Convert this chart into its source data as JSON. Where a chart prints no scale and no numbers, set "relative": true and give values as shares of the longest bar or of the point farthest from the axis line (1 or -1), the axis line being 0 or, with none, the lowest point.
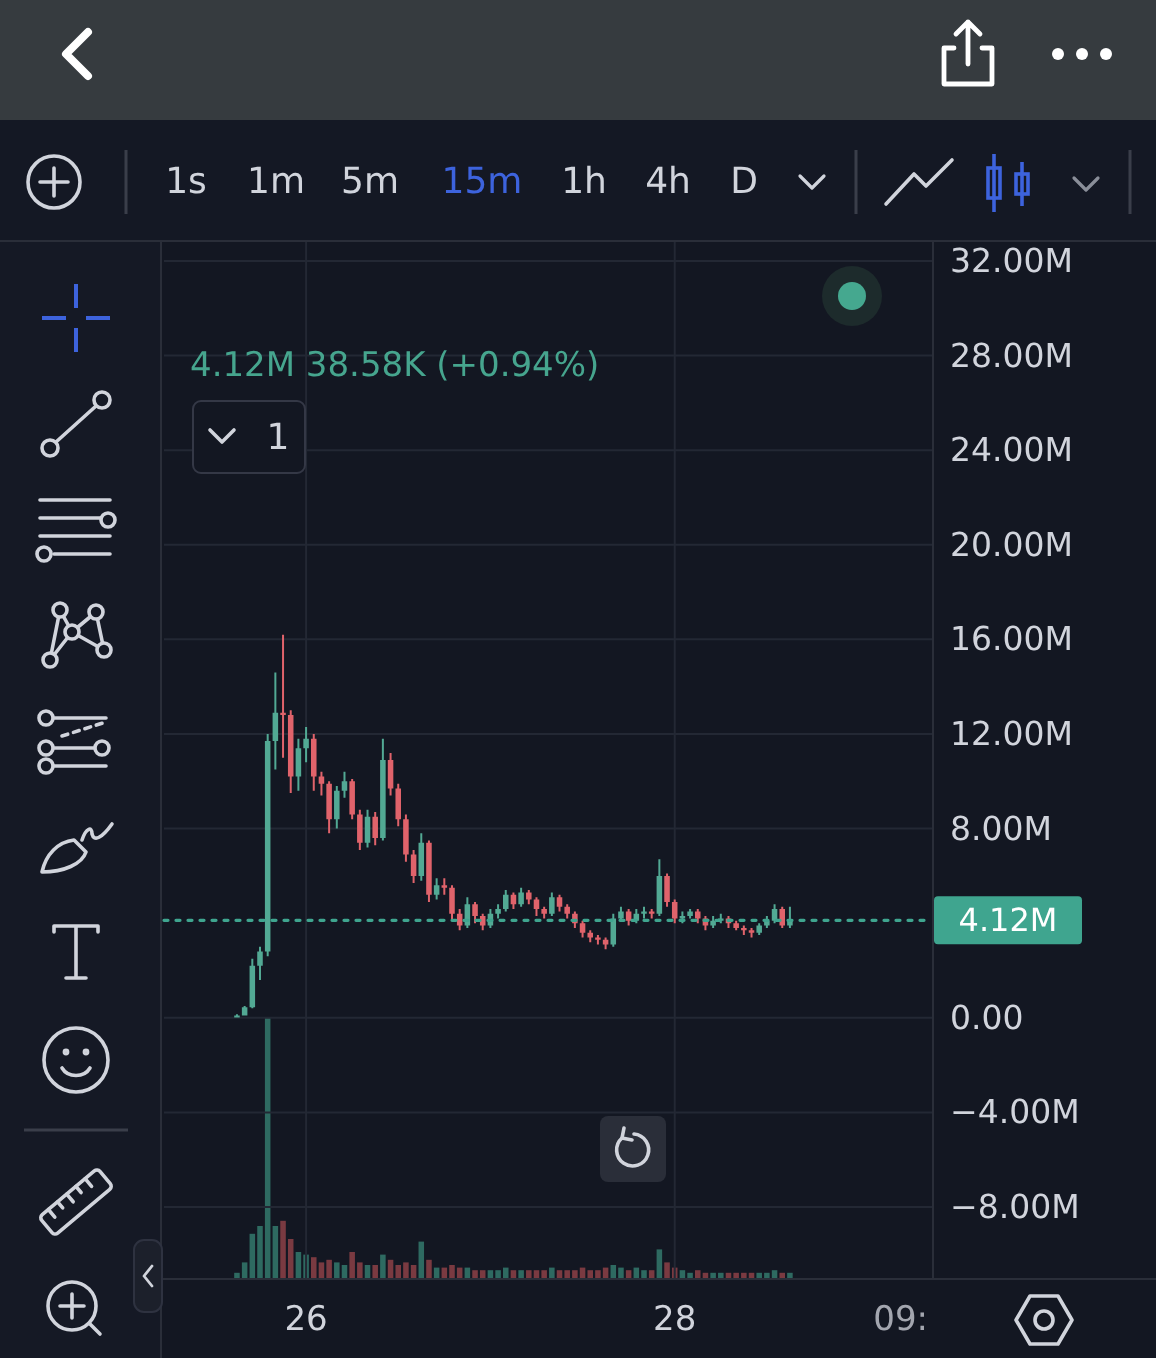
{
  "chart_data": [
    {
      "type": "candlestick",
      "subtitle": "4.12M 38.58K (+0.94%)",
      "annotations": [
        "1s",
        "1m",
        "5m",
        "15m",
        "1h",
        "4h",
        "D",
        "1",
        "09:"
      ],
      "categories": [
        null,
        null,
        null,
        null,
        null,
        null,
        null,
        null,
        null,
        null,
        null,
        null,
        null,
        null,
        null,
        null,
        null,
        null,
        "26",
        null,
        null,
        null,
        null,
        null,
        null,
        null,
        null,
        null,
        null,
        null,
        null,
        null,
        null,
        null,
        null,
        null,
        null,
        null,
        null,
        null,
        null,
        null,
        null,
        null,
        null,
        null,
        null,
        null,
        null,
        null,
        null,
        null,
        null,
        null,
        null,
        null,
        null,
        null,
        null,
        null,
        null,
        null,
        null,
        null,
        null,
        null,
        "28",
        null,
        null,
        null,
        null,
        null,
        null,
        null,
        null,
        null,
        null,
        null,
        null,
        null,
        null,
        null,
        null,
        null,
        null,
        null,
        null,
        null,
        null,
        null,
        null,
        null,
        null,
        null,
        null,
        null,
        null,
        null,
        null,
        null
      ],
      "ohlc": [
        null,
        null,
        null,
        null,
        null,
        null,
        null,
        null,
        null,
        [
          0.05,
          0.15,
          0.05,
          0.1
        ],
        [
          0.1,
          0.5,
          0.1,
          0.45
        ],
        [
          0.45,
          2.5,
          0.4,
          2.2
        ],
        [
          2.2,
          3.0,
          1.6,
          2.8
        ],
        [
          2.8,
          12.0,
          2.6,
          11.7
        ],
        [
          11.7,
          14.6,
          10.5,
          12.9
        ],
        [
          12.9,
          16.2,
          11.0,
          12.8
        ],
        [
          12.8,
          13.0,
          9.5,
          10.2
        ],
        [
          10.2,
          11.8,
          9.6,
          11.4
        ],
        [
          11.4,
          12.3,
          10.8,
          11.8
        ],
        [
          11.8,
          12.0,
          9.6,
          10.2
        ],
        [
          10.2,
          10.4,
          9.4,
          9.9
        ],
        [
          9.9,
          10.0,
          7.8,
          8.4
        ],
        [
          8.4,
          9.8,
          8.0,
          9.6
        ],
        [
          9.6,
          10.4,
          9.3,
          10.0
        ],
        [
          10.0,
          10.1,
          8.4,
          8.6
        ],
        [
          8.6,
          8.8,
          7.1,
          7.4
        ],
        [
          7.4,
          8.8,
          7.2,
          8.5
        ],
        [
          8.5,
          8.7,
          7.3,
          7.6
        ],
        [
          7.6,
          11.8,
          7.5,
          10.9
        ],
        [
          10.9,
          11.2,
          9.4,
          9.7
        ],
        [
          9.7,
          9.9,
          8.1,
          8.4
        ],
        [
          8.4,
          8.6,
          6.6,
          6.9
        ],
        [
          6.9,
          7.1,
          5.7,
          6.0
        ],
        [
          6.0,
          7.8,
          5.8,
          7.4
        ],
        [
          7.4,
          7.5,
          4.9,
          5.2
        ],
        [
          5.2,
          5.9,
          5.0,
          5.6
        ],
        [
          5.6,
          5.9,
          5.2,
          5.5
        ],
        [
          5.5,
          5.6,
          4.1,
          4.4
        ],
        [
          4.4,
          4.6,
          3.7,
          3.9
        ],
        [
          3.9,
          5.1,
          3.8,
          4.8
        ],
        [
          4.8,
          4.9,
          4.0,
          4.3
        ],
        [
          4.3,
          4.4,
          3.7,
          3.9
        ],
        [
          3.9,
          4.6,
          3.8,
          4.4
        ],
        [
          4.4,
          4.8,
          4.2,
          4.6
        ],
        [
          4.6,
          5.4,
          4.5,
          5.2
        ],
        [
          5.2,
          5.3,
          4.6,
          4.8
        ],
        [
          4.8,
          5.5,
          4.7,
          5.3
        ],
        [
          5.3,
          5.4,
          4.8,
          5.0
        ],
        [
          5.0,
          5.1,
          4.3,
          4.6
        ],
        [
          4.6,
          4.7,
          4.2,
          4.4
        ],
        [
          4.4,
          5.3,
          4.3,
          5.1
        ],
        [
          5.1,
          5.2,
          4.5,
          4.7
        ],
        [
          4.7,
          4.8,
          4.2,
          4.4
        ],
        [
          4.4,
          4.5,
          3.8,
          4.0
        ],
        [
          4.0,
          4.1,
          3.4,
          3.6
        ],
        [
          3.6,
          3.7,
          3.2,
          3.4
        ],
        [
          3.4,
          3.5,
          3.1,
          3.3
        ],
        [
          3.3,
          3.4,
          2.9,
          3.1
        ],
        [
          3.1,
          4.4,
          3.0,
          4.2
        ],
        [
          4.2,
          4.7,
          4.1,
          4.5
        ],
        [
          4.5,
          4.6,
          3.9,
          4.1
        ],
        [
          4.1,
          4.6,
          4.0,
          4.4
        ],
        [
          4.4,
          4.7,
          4.2,
          4.5
        ],
        [
          4.5,
          4.6,
          4.2,
          4.4
        ],
        [
          4.4,
          6.7,
          4.3,
          6.0
        ],
        [
          6.0,
          6.1,
          4.7,
          4.9
        ],
        [
          4.9,
          5.0,
          4.0,
          4.2
        ],
        [
          4.2,
          4.5,
          4.0,
          4.3
        ],
        [
          4.3,
          4.6,
          4.2,
          4.5
        ],
        [
          4.5,
          4.6,
          4.0,
          4.2
        ],
        [
          4.2,
          4.3,
          3.7,
          3.9
        ],
        [
          3.9,
          4.3,
          3.8,
          4.1
        ],
        [
          4.1,
          4.4,
          4.0,
          4.2
        ],
        [
          4.2,
          4.3,
          3.8,
          4.0
        ],
        [
          4.0,
          4.1,
          3.7,
          3.8
        ],
        [
          3.8,
          3.9,
          3.5,
          3.7
        ],
        [
          3.7,
          3.8,
          3.4,
          3.6
        ],
        [
          3.6,
          4.0,
          3.5,
          3.9
        ],
        [
          3.9,
          4.3,
          3.8,
          4.1
        ],
        [
          4.1,
          4.8,
          4.0,
          4.6
        ],
        [
          4.6,
          4.7,
          3.8,
          3.9
        ],
        [
          3.9,
          4.7,
          3.8,
          4.12
        ],
        null,
        null,
        null,
        null,
        null,
        null,
        null,
        null,
        null,
        null,
        null,
        null,
        null,
        null,
        null,
        null,
        null,
        null
      ],
      "colors": [
        null,
        null,
        null,
        null,
        null,
        null,
        null,
        null,
        null,
        "#52a994",
        "#52a994",
        "#52a994",
        "#52a994",
        "#52a994",
        "#52a994",
        "#e0636b",
        "#e0636b",
        "#52a994",
        "#52a994",
        "#e0636b",
        "#e0636b",
        "#e0636b",
        "#52a994",
        "#52a994",
        "#e0636b",
        "#e0636b",
        "#52a994",
        "#e0636b",
        "#52a994",
        "#e0636b",
        "#e0636b",
        "#e0636b",
        "#e0636b",
        "#52a994",
        "#e0636b",
        "#52a994",
        "#e0636b",
        "#e0636b",
        "#e0636b",
        "#52a994",
        "#e0636b",
        "#e0636b",
        "#52a994",
        "#52a994",
        "#52a994",
        "#e0636b",
        "#52a994",
        "#e0636b",
        "#e0636b",
        "#e0636b",
        "#52a994",
        "#e0636b",
        "#e0636b",
        "#e0636b",
        "#e0636b",
        "#e0636b",
        "#e0636b",
        "#e0636b",
        "#52a994",
        "#52a994",
        "#e0636b",
        "#52a994",
        "#52a994",
        "#e0636b",
        "#52a994",
        "#e0636b",
        "#e0636b",
        "#52a994",
        "#52a994",
        "#e0636b",
        "#e0636b",
        "#52a994",
        "#52a994",
        "#e0636b",
        "#e0636b",
        "#e0636b",
        "#e0636b",
        "#52a994",
        "#52a994",
        "#52a994",
        "#e0636b",
        "#52a994",
        null,
        null,
        null,
        null,
        null,
        null,
        null,
        null,
        null,
        null,
        null,
        null,
        null,
        null,
        null,
        null,
        null,
        null
      ],
      "ylim": [
        -11,
        32.8
      ],
      "yticks": [
        {
          "value": 32,
          "label": "32.00M"
        },
        {
          "value": 28,
          "label": "28.00M"
        },
        {
          "value": 24,
          "label": "24.00M"
        },
        {
          "value": 20,
          "label": "20.00M"
        },
        {
          "value": 16,
          "label": "16.00M"
        },
        {
          "value": 12,
          "label": "12.00M"
        },
        {
          "value": 8,
          "label": "8.00M"
        },
        {
          "value": 0,
          "label": "0.00"
        },
        {
          "value": -4,
          "label": "−4.00M"
        },
        {
          "value": -8,
          "label": "−8.00M"
        }
      ],
      "grid": true,
      "ref_lines": [
        {
          "axis": "y",
          "value": 4.12,
          "label": "4.12M",
          "color": "#3fa58f",
          "line_style": "dotted"
        }
      ]
    },
    {
      "type": "bar",
      "relative": true,
      "tick_labels": false,
      "categories": [
        null,
        null,
        null,
        null,
        null,
        null,
        null,
        null,
        null,
        null,
        null,
        null,
        null,
        null,
        null,
        null,
        null,
        null,
        "26",
        null,
        null,
        null,
        null,
        null,
        null,
        null,
        null,
        null,
        null,
        null,
        null,
        null,
        null,
        null,
        null,
        null,
        null,
        null,
        null,
        null,
        null,
        null,
        null,
        null,
        null,
        null,
        null,
        null,
        null,
        null,
        null,
        null,
        null,
        null,
        null,
        null,
        null,
        null,
        null,
        null,
        null,
        null,
        null,
        null,
        null,
        null,
        "28",
        null,
        null,
        null,
        null,
        null,
        null,
        null,
        null,
        null,
        null,
        null,
        null,
        null,
        null,
        null,
        null,
        null,
        null,
        null,
        null,
        null,
        null,
        null,
        null,
        null,
        null,
        null,
        null,
        null,
        null,
        null,
        null,
        null
      ],
      "values": [
        null,
        null,
        null,
        null,
        null,
        null,
        null,
        null,
        null,
        0.02,
        0.06,
        0.17,
        0.2,
        1,
        0.2,
        0.22,
        0.15,
        0.1,
        0.09,
        0.08,
        0.06,
        0.07,
        0.06,
        0.05,
        0.1,
        0.06,
        0.05,
        0.05,
        0.09,
        0.07,
        0.05,
        0.06,
        0.05,
        0.14,
        0.07,
        0.04,
        0.04,
        0.05,
        0.04,
        0.04,
        0.03,
        0.03,
        0.03,
        0.03,
        0.04,
        0.03,
        0.03,
        0.03,
        0.03,
        0.03,
        0.04,
        0.03,
        0.03,
        0.03,
        0.04,
        0.03,
        0.03,
        0.04,
        0.05,
        0.04,
        0.03,
        0.04,
        0.03,
        0.03,
        0.11,
        0.06,
        0.04,
        0.03,
        0.02,
        0.03,
        0.02,
        0.02,
        0.02,
        0.02,
        0.02,
        0.02,
        0.02,
        0.02,
        0.02,
        0.03,
        0.02,
        0.02,
        null,
        null,
        null,
        null,
        null,
        null,
        null,
        null,
        null,
        null,
        null,
        null,
        null,
        null,
        null,
        null,
        null,
        null
      ],
      "colors": [
        null,
        null,
        null,
        null,
        null,
        null,
        null,
        null,
        null,
        "#2e6a61",
        "#2e6a61",
        "#2e6a61",
        "#2e6a61",
        "#2e6a61",
        "#2e6a61",
        "#7a3a41",
        "#7a3a41",
        "#2e6a61",
        "#2e6a61",
        "#7a3a41",
        "#7a3a41",
        "#7a3a41",
        "#2e6a61",
        "#2e6a61",
        "#7a3a41",
        "#7a3a41",
        "#2e6a61",
        "#7a3a41",
        "#2e6a61",
        "#7a3a41",
        "#7a3a41",
        "#7a3a41",
        "#7a3a41",
        "#2e6a61",
        "#7a3a41",
        "#2e6a61",
        "#7a3a41",
        "#7a3a41",
        "#7a3a41",
        "#2e6a61",
        "#7a3a41",
        "#7a3a41",
        "#2e6a61",
        "#2e6a61",
        "#2e6a61",
        "#7a3a41",
        "#2e6a61",
        "#7a3a41",
        "#7a3a41",
        "#7a3a41",
        "#2e6a61",
        "#7a3a41",
        "#7a3a41",
        "#7a3a41",
        "#7a3a41",
        "#7a3a41",
        "#7a3a41",
        "#7a3a41",
        "#2e6a61",
        "#2e6a61",
        "#7a3a41",
        "#2e6a61",
        "#2e6a61",
        "#7a3a41",
        "#2e6a61",
        "#7a3a41",
        "#7a3a41",
        "#2e6a61",
        "#2e6a61",
        "#7a3a41",
        "#7a3a41",
        "#2e6a61",
        "#2e6a61",
        "#7a3a41",
        "#7a3a41",
        "#7a3a41",
        "#7a3a41",
        "#2e6a61",
        "#2e6a61",
        "#2e6a61",
        "#7a3a41",
        "#2e6a61",
        null,
        null,
        null,
        null,
        null,
        null,
        null,
        null,
        null,
        null,
        null,
        null,
        null,
        null,
        null,
        null,
        null,
        null
      ]
    }
  ]
}
